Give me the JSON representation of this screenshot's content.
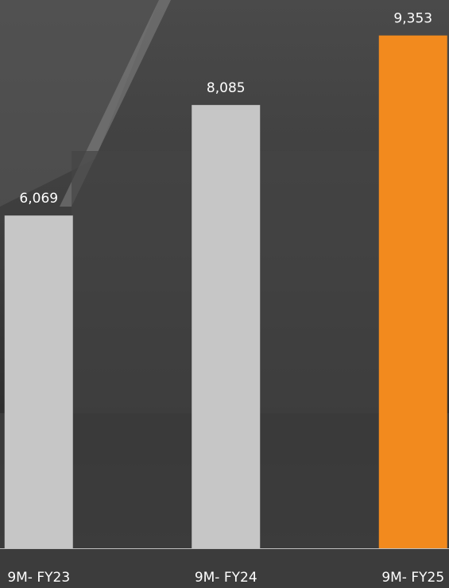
{
  "chart_data": {
    "type": "bar",
    "categories": [
      "9M- FY23",
      "9M- FY24",
      "9M- FY25"
    ],
    "values": [
      6069,
      8085,
      9353
    ],
    "value_labels": [
      "6,069",
      "8,085",
      "9,353"
    ],
    "colors": [
      "#c6c6c6",
      "#c6c6c6",
      "#f28a1e"
    ],
    "ylim": [
      0,
      10000
    ]
  }
}
